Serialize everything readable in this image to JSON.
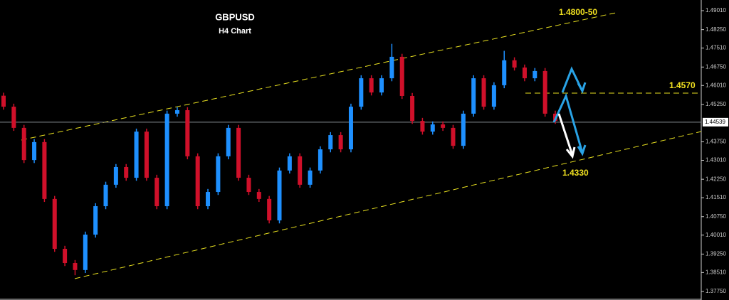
{
  "chart_data": {
    "type": "candlestick",
    "title": "GBPUSD",
    "subtitle": "H4 Chart",
    "annotations": [
      "1.4800-50",
      "1.4570",
      "1.4330"
    ],
    "up_color": "#1e90ff",
    "down_color": "#d0102a",
    "open": [
      1.456,
      1.4516,
      1.4431,
      1.4302,
      1.4374,
      1.4146,
      1.3946,
      1.3889,
      1.3861,
      1.4003,
      1.4117,
      1.4203,
      1.4274,
      1.4231,
      1.4416,
      1.4231,
      1.4117,
      1.4488,
      1.4502,
      1.4317,
      1.4117,
      1.4174,
      1.4317,
      1.4431,
      1.4231,
      1.4174,
      1.4146,
      1.406,
      1.426,
      1.4317,
      1.4203,
      1.426,
      1.4345,
      1.4402,
      1.4345,
      1.4516,
      1.463,
      1.4573,
      1.463,
      1.4716,
      1.4559,
      1.4459,
      1.4416,
      1.4445,
      1.4431,
      1.4359,
      1.4488,
      1.463,
      1.4516,
      1.4602,
      1.4702,
      1.4673,
      1.463,
      1.4659,
      1.4488
    ],
    "high": [
      1.4572,
      1.4528,
      1.4443,
      1.4386,
      1.4386,
      1.4158,
      1.3958,
      1.3901,
      1.4015,
      1.4129,
      1.4215,
      1.4286,
      1.4286,
      1.4428,
      1.4428,
      1.4243,
      1.45,
      1.4514,
      1.4514,
      1.4329,
      1.4186,
      1.4329,
      1.4443,
      1.4443,
      1.4243,
      1.4186,
      1.4158,
      1.4272,
      1.4329,
      1.4329,
      1.4272,
      1.4357,
      1.4414,
      1.4414,
      1.4528,
      1.4642,
      1.4642,
      1.4642,
      1.4768,
      1.4728,
      1.4571,
      1.4471,
      1.4457,
      1.4457,
      1.4443,
      1.45,
      1.4642,
      1.4642,
      1.4614,
      1.474,
      1.4714,
      1.4685,
      1.4671,
      1.4671,
      1.45
    ],
    "low": [
      1.4504,
      1.4419,
      1.429,
      1.429,
      1.4134,
      1.3934,
      1.3877,
      1.384,
      1.3849,
      1.3991,
      1.4105,
      1.4191,
      1.4219,
      1.4219,
      1.4219,
      1.4105,
      1.4105,
      1.4476,
      1.4305,
      1.4105,
      1.4105,
      1.4162,
      1.4305,
      1.4219,
      1.4162,
      1.4134,
      1.4048,
      1.4048,
      1.4248,
      1.4191,
      1.4191,
      1.4248,
      1.4333,
      1.4333,
      1.4333,
      1.4504,
      1.4561,
      1.4561,
      1.4618,
      1.4547,
      1.4447,
      1.4404,
      1.4404,
      1.4419,
      1.4347,
      1.4347,
      1.4476,
      1.4504,
      1.4504,
      1.459,
      1.4661,
      1.4618,
      1.4618,
      1.4476,
      1.4447
    ],
    "close": [
      1.4516,
      1.4431,
      1.4302,
      1.4374,
      1.4146,
      1.3946,
      1.3889,
      1.3861,
      1.4003,
      1.4117,
      1.4203,
      1.4274,
      1.4231,
      1.4416,
      1.4231,
      1.4117,
      1.4488,
      1.4502,
      1.4317,
      1.4117,
      1.4174,
      1.4317,
      1.4431,
      1.4231,
      1.4174,
      1.4146,
      1.406,
      1.426,
      1.4317,
      1.4203,
      1.426,
      1.4345,
      1.4402,
      1.4345,
      1.4516,
      1.463,
      1.4573,
      1.463,
      1.4716,
      1.4559,
      1.4459,
      1.4416,
      1.4445,
      1.4431,
      1.4359,
      1.4488,
      1.463,
      1.4516,
      1.4602,
      1.4702,
      1.4673,
      1.463,
      1.4659,
      1.4488,
      1.4459
    ],
    "current_price": 1.44539,
    "ylim": [
      1.37408,
      1.49438
    ],
    "yticks": [
      {
        "value": 1.4901,
        "label": "1.49010"
      },
      {
        "value": 1.4825,
        "label": "1.48250"
      },
      {
        "value": 1.4751,
        "label": "1.47510"
      },
      {
        "value": 1.4675,
        "label": "1.46750"
      },
      {
        "value": 1.4601,
        "label": "1.46010"
      },
      {
        "value": 1.4525,
        "label": "1.45250"
      },
      {
        "value": 1.4375,
        "label": "1.43750"
      },
      {
        "value": 1.4301,
        "label": "1.43010"
      },
      {
        "value": 1.4225,
        "label": "1.42250"
      },
      {
        "value": 1.4151,
        "label": "1.41510"
      },
      {
        "value": 1.4075,
        "label": "1.40750"
      },
      {
        "value": 1.4001,
        "label": "1.40010"
      },
      {
        "value": 1.3925,
        "label": "1.39250"
      },
      {
        "value": 1.3851,
        "label": "1.38510"
      },
      {
        "value": 1.3775,
        "label": "1.37750"
      }
    ]
  }
}
